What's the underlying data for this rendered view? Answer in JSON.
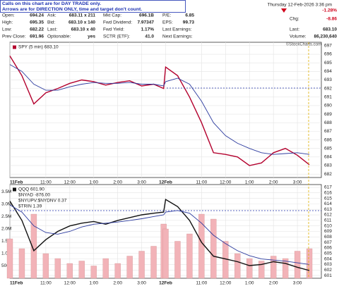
{
  "header": {
    "notice": [
      "Calls on this chart are for DAY TRADE only.",
      "Arrows are for DIRECTION ONLY, time and target don't count."
    ],
    "date": "Thursday  12-Feb-2026  3:36 pm",
    "credit": "©StockCharts.com",
    "quote": [
      [
        {
          "label": "Open:",
          "value": "694.24"
        },
        {
          "label": "High:",
          "value": "695.35"
        },
        {
          "label": "Low:",
          "value": "682.22"
        },
        {
          "label": "Prev Close:",
          "value": "691.96"
        }
      ],
      [
        {
          "label": "Ask:",
          "value": "683.11 x 211"
        },
        {
          "label": "Bid:",
          "value": "683.10 x 140"
        },
        {
          "label": "Last:",
          "value": "683.10 x 40"
        },
        {
          "label": "Optionable:",
          "value": "yes"
        }
      ],
      [
        {
          "label": "Mkt Cap:",
          "value": "696.1B"
        },
        {
          "label": "Fwd Dividend:",
          "value": "7.97347"
        },
        {
          "label": "Fwd Yield:",
          "value": "1.17%"
        },
        {
          "label": "SCTR (ETF):",
          "value": "41.0"
        }
      ],
      [
        {
          "label": "P/E:",
          "value": "6.85"
        },
        {
          "label": "EPS:",
          "value": "99.73"
        },
        {
          "label": "Last Earnings:"
        },
        {
          "label": "Next Earnings:"
        }
      ],
      [
        {
          "value": "-1.28%"
        },
        {
          "label": "Chg:",
          "value": "-8.86"
        },
        {
          "label": "Last:",
          "value": "683.10"
        },
        {
          "label": "Volume:",
          "value": "86,230,640"
        }
      ]
    ]
  },
  "chart_data": [
    {
      "type": "line",
      "x": [
        0,
        6,
        12,
        18,
        24,
        30,
        36,
        42,
        48,
        54,
        60,
        66,
        72,
        77,
        78,
        84,
        90,
        96,
        102,
        108,
        114,
        120,
        126,
        132,
        138,
        144,
        150
      ],
      "xlim": [
        0,
        156
      ],
      "xticks": [
        {
          "value": 0,
          "label": "11Feb"
        },
        {
          "value": 18,
          "label": "11:00"
        },
        {
          "value": 30,
          "label": "12:00"
        },
        {
          "value": 42,
          "label": "1:00"
        },
        {
          "value": 54,
          "label": "2:00"
        },
        {
          "value": 66,
          "label": "3:00"
        },
        {
          "value": 78,
          "label": "12Feb"
        },
        {
          "value": 96,
          "label": "11:00"
        },
        {
          "value": 108,
          "label": "12:00"
        },
        {
          "value": 120,
          "label": "1:00"
        },
        {
          "value": 132,
          "label": "2:00"
        },
        {
          "value": 144,
          "label": "3:00"
        }
      ],
      "ylim": [
        681.6,
        697.4
      ],
      "yticks": [
        682,
        683,
        684,
        685,
        686,
        687,
        688,
        689,
        690,
        691,
        692,
        693,
        694,
        695,
        696,
        697
      ],
      "grid": true,
      "series": [
        {
          "name": "SPY (5 min) 683.10",
          "color": "#b3002d",
          "values": [
            695.8,
            693.5,
            690.2,
            691.5,
            692.0,
            692.6,
            693.0,
            692.8,
            692.4,
            692.7,
            692.9,
            692.3,
            692.5,
            692.0,
            694.5,
            693.5,
            691.0,
            688.0,
            684.5,
            684.3,
            684.0,
            683.0,
            683.3,
            684.5,
            685.0,
            684.2,
            683.1
          ]
        },
        {
          "color": "#2b3a9e",
          "values": [
            694.8,
            694.0,
            692.5,
            691.8,
            691.8,
            692.2,
            692.5,
            692.7,
            692.6,
            692.6,
            692.7,
            692.5,
            692.5,
            692.3,
            692.8,
            693.2,
            692.5,
            690.5,
            688.0,
            686.5,
            685.6,
            685.0,
            684.5,
            684.3,
            684.4,
            684.5,
            684.3
          ]
        }
      ]
    },
    {
      "type": "combo",
      "x": [
        0,
        6,
        12,
        18,
        24,
        30,
        36,
        42,
        48,
        54,
        60,
        66,
        72,
        77,
        78,
        84,
        90,
        96,
        102,
        108,
        114,
        120,
        126,
        132,
        138,
        144,
        150
      ],
      "xlim": [
        0,
        156
      ],
      "xticks": [
        {
          "value": 0,
          "label": "11Feb"
        },
        {
          "value": 18,
          "label": "11:00"
        },
        {
          "value": 30,
          "label": "12:00"
        },
        {
          "value": 42,
          "label": "1:00"
        },
        {
          "value": 54,
          "label": "2:00"
        },
        {
          "value": 66,
          "label": "3:00"
        },
        {
          "value": 78,
          "label": "12Feb"
        },
        {
          "value": 96,
          "label": "11:00"
        },
        {
          "value": 108,
          "label": "12:00"
        },
        {
          "value": 120,
          "label": "1:00"
        },
        {
          "value": 132,
          "label": "2:00"
        },
        {
          "value": 144,
          "label": "3:00"
        }
      ],
      "ylim": [
        0,
        3800000
      ],
      "yticks": [
        {
          "value": 500000,
          "label": "500K"
        },
        {
          "value": 1000000,
          "label": "1.0M"
        },
        {
          "value": 1500000,
          "label": "1.5M"
        },
        {
          "value": 2000000,
          "label": "2.0M"
        },
        {
          "value": 2500000,
          "label": "2.5M"
        },
        {
          "value": 3000000,
          "label": "3.0M"
        },
        {
          "value": 3500000,
          "label": "3.5M"
        }
      ],
      "y2lim": [
        600.5,
        617.5
      ],
      "y2ticks": [
        601,
        602,
        603,
        604,
        605,
        606,
        607,
        608,
        609,
        610,
        611,
        612,
        613,
        614,
        615,
        616,
        617
      ],
      "grid": true,
      "annotations": [
        "$NYAD -876.00",
        "$NYUPV:$NYDNV 0.37",
        "$TRIN 1.39"
      ],
      "series": [
        {
          "color": "#f2b3b8",
          "kind": "bar",
          "values": [
            1600000,
            1200000,
            2600000,
            1000000,
            800000,
            600000,
            700000,
            500000,
            800000,
            600000,
            900000,
            1100000,
            1300000,
            2200000,
            2000000,
            1500000,
            1800000,
            2600000,
            2400000,
            1500000,
            1000000,
            800000,
            700000,
            900000,
            800000,
            1100000,
            1200000
          ]
        },
        {
          "name": "QQQ 601.90",
          "color": "#111111",
          "axis": "y2",
          "values": [
            614.5,
            611,
            605.5,
            607.5,
            609,
            610,
            610.5,
            610.8,
            610.3,
            611,
            611.5,
            612,
            612.3,
            612.5,
            614.8,
            613.5,
            611,
            607,
            604.5,
            604,
            603.5,
            602.8,
            603,
            603.5,
            603.2,
            602.5,
            601.9
          ]
        },
        {
          "color": "#2b3a9e",
          "axis": "y2",
          "values": [
            613.8,
            612.5,
            610,
            608.8,
            608.5,
            609,
            609.8,
            610.3,
            610.5,
            610.7,
            611,
            611.3,
            611.7,
            612,
            612.5,
            612.8,
            612.3,
            610.5,
            608.3,
            606.8,
            605.5,
            604.6,
            604,
            603.8,
            603.6,
            603.3,
            603
          ]
        }
      ]
    }
  ]
}
